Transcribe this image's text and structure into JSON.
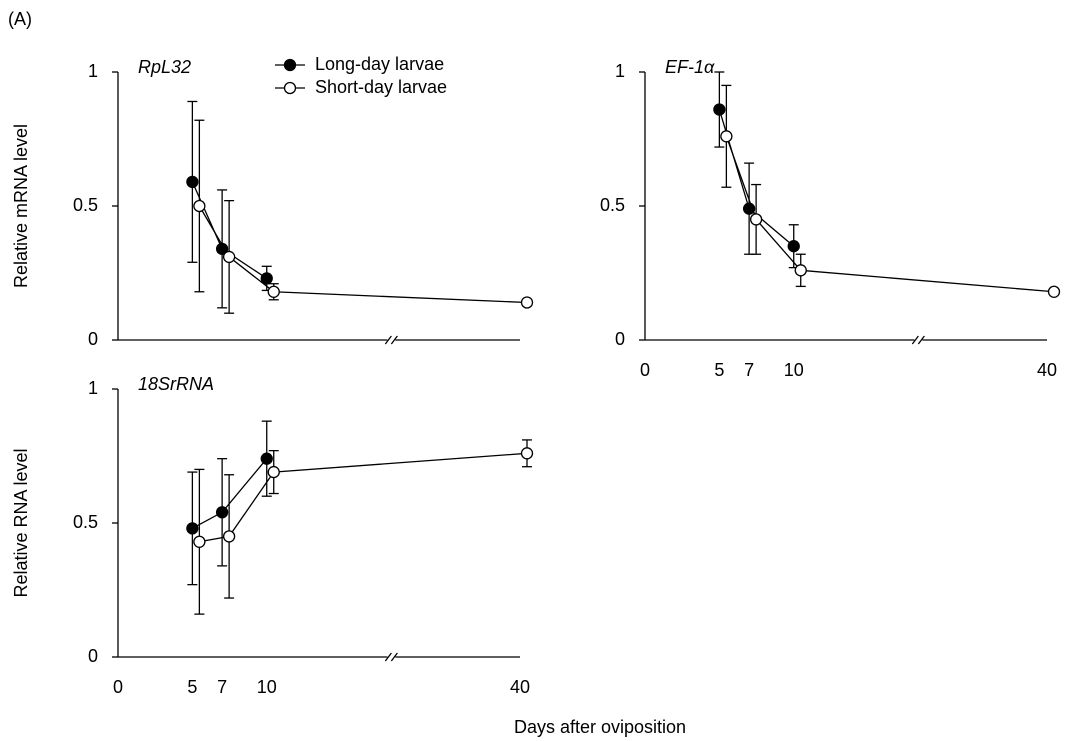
{
  "panel_label": "(A)",
  "xlabel": "Days after oviposition",
  "chart_data": [
    {
      "type": "line",
      "title": "RpL32",
      "ylabel": "Relative mRNA level",
      "xlim": [
        0,
        40
      ],
      "ylim": [
        0,
        1
      ],
      "yticks": [
        0,
        0.5,
        1
      ],
      "broken_x_axis": true,
      "legend": "upper center",
      "series": [
        {
          "name": "Long-day larvae",
          "color": "#000000",
          "marker": "filled",
          "x": [
            5,
            7,
            10
          ],
          "values": [
            0.59,
            0.34,
            0.23
          ],
          "errors": [
            0.3,
            0.22,
            0.045
          ]
        },
        {
          "name": "Short-day larvae",
          "color": "#000000",
          "marker": "open",
          "x": [
            5,
            7,
            10,
            40
          ],
          "values": [
            0.5,
            0.31,
            0.18,
            0.14
          ],
          "errors": [
            0.32,
            0.21,
            0.03,
            0.01
          ]
        }
      ]
    },
    {
      "type": "line",
      "title": "EF-1α",
      "xlim": [
        0,
        40
      ],
      "ylim": [
        0,
        1
      ],
      "yticks": [
        0,
        0.5,
        1
      ],
      "xticks": [
        0,
        5,
        7,
        10,
        40
      ],
      "broken_x_axis": true,
      "series": [
        {
          "color": "#000000",
          "marker": "filled",
          "x": [
            5,
            7,
            10
          ],
          "values": [
            0.86,
            0.49,
            0.35
          ],
          "errors": [
            0.14,
            0.17,
            0.08
          ]
        },
        {
          "color": "#000000",
          "marker": "open",
          "x": [
            5,
            7,
            10,
            40
          ],
          "values": [
            0.76,
            0.45,
            0.26,
            0.18
          ],
          "errors": [
            0.19,
            0.13,
            0.06,
            0.01
          ]
        }
      ]
    },
    {
      "type": "line",
      "title": "18SrRNA",
      "ylabel": "Relative RNA level",
      "xlim": [
        0,
        40
      ],
      "ylim": [
        0,
        1
      ],
      "yticks": [
        0,
        0.5,
        1
      ],
      "xticks": [
        0,
        5,
        7,
        10,
        40
      ],
      "broken_x_axis": true,
      "series": [
        {
          "color": "#000000",
          "marker": "filled",
          "x": [
            5,
            7,
            10
          ],
          "values": [
            0.48,
            0.54,
            0.74
          ],
          "errors": [
            0.21,
            0.2,
            0.14
          ]
        },
        {
          "color": "#000000",
          "marker": "open",
          "x": [
            5,
            7,
            10,
            40
          ],
          "values": [
            0.43,
            0.45,
            0.69,
            0.76
          ],
          "errors": [
            0.27,
            0.23,
            0.08,
            0.05
          ]
        }
      ]
    }
  ]
}
